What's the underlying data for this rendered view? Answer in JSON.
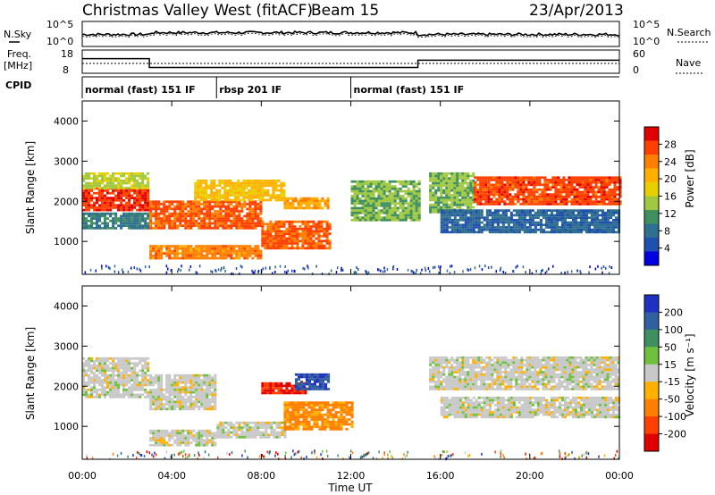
{
  "header": {
    "station": "Christmas Valley West (fitACF)",
    "beam": "Beam 15",
    "date": "23/Apr/2013"
  },
  "noise_panel": {
    "left_label": "N.Sky",
    "right_label": "N.Search",
    "ticks": [
      "10^5",
      "10^0"
    ]
  },
  "freq_panel": {
    "left_label_1": "Freq.",
    "left_label_2": "[MHz]",
    "left_ticks": [
      "18",
      "8"
    ],
    "right_label": "Nave",
    "right_ticks": [
      "60",
      "0"
    ]
  },
  "cpid": {
    "label": "CPID",
    "segments": [
      {
        "name": "normal (fast) 151 IF",
        "start_hour": 0,
        "end_hour": 6
      },
      {
        "name": "rbsp 201 IF",
        "start_hour": 6,
        "end_hour": 12
      },
      {
        "name": "normal (fast) 151 IF",
        "start_hour": 12,
        "end_hour": 24
      }
    ]
  },
  "power_panel": {
    "ylabel": "Slant Range [km]",
    "yticks": [
      "4000",
      "3000",
      "2000",
      "1000"
    ],
    "colorbar_label": "Power [dB]",
    "colorbar_ticks": [
      "28",
      "24",
      "20",
      "16",
      "12",
      "8",
      "4"
    ],
    "colors": [
      "#e00000",
      "#ff4000",
      "#ff7f00",
      "#ffb000",
      "#e8d000",
      "#a0c840",
      "#3f8f5f",
      "#2f6f8f",
      "#1f4faf",
      "#0000e0"
    ]
  },
  "velocity_panel": {
    "ylabel": "Slant Range [km]",
    "yticks": [
      "4000",
      "3000",
      "2000",
      "1000"
    ],
    "colorbar_label": "Velocity [m s⁻¹]",
    "colorbar_ticks": [
      "200",
      "100",
      "50",
      "15",
      "-15",
      "-50",
      "-100",
      "-200"
    ],
    "colors": [
      "#2030c0",
      "#3060a0",
      "#3f8f5f",
      "#70c040",
      "#c8c8c8",
      "#ffb000",
      "#ff7f00",
      "#ff4000",
      "#e00000"
    ]
  },
  "xaxis": {
    "label": "Time UT",
    "ticks": [
      "00:00",
      "04:00",
      "08:00",
      "12:00",
      "16:00",
      "20:00",
      "00:00"
    ]
  },
  "chart_data": {
    "type": "heatmap",
    "title": "Christmas Valley West (fitACF) Beam 15 23/Apr/2013",
    "xlabel": "Time UT",
    "ylabel": "Slant Range [km]",
    "xlim_hours": [
      0,
      24
    ],
    "ylim_km": [
      180,
      4500
    ],
    "frequency_mhz": [
      {
        "start_hour": 0,
        "end_hour": 3,
        "value": 16
      },
      {
        "start_hour": 3,
        "end_hour": 15,
        "value": 10.5
      },
      {
        "start_hour": 15,
        "end_hour": 24,
        "value": 15
      }
    ],
    "power_echo_bands": [
      {
        "t0": 0,
        "t1": 3,
        "r_lo": 1750,
        "r_hi": 2300,
        "db": 28
      },
      {
        "t0": 0,
        "t1": 3,
        "r_lo": 2300,
        "r_hi": 2700,
        "db": 16
      },
      {
        "t0": 0,
        "t1": 3,
        "r_lo": 1300,
        "r_hi": 1700,
        "db": 10
      },
      {
        "t0": 3,
        "t1": 8,
        "r_lo": 1300,
        "r_hi": 2000,
        "db": 26
      },
      {
        "t0": 3,
        "t1": 8,
        "r_lo": 550,
        "r_hi": 900,
        "db": 24
      },
      {
        "t0": 5,
        "t1": 9,
        "r_lo": 2000,
        "r_hi": 2500,
        "db": 20
      },
      {
        "t0": 8,
        "t1": 11,
        "r_lo": 800,
        "r_hi": 1500,
        "db": 26
      },
      {
        "t0": 9,
        "t1": 11,
        "r_lo": 1800,
        "r_hi": 2100,
        "db": 22
      },
      {
        "t0": 12,
        "t1": 15,
        "r_lo": 1500,
        "r_hi": 2500,
        "db": 14
      },
      {
        "t0": 15.5,
        "t1": 17.5,
        "r_lo": 1700,
        "r_hi": 2700,
        "db": 14
      },
      {
        "t0": 17.5,
        "t1": 24,
        "r_lo": 1900,
        "r_hi": 2600,
        "db": 27
      },
      {
        "t0": 16,
        "t1": 24,
        "r_lo": 1200,
        "r_hi": 1800,
        "db": 8
      }
    ],
    "velocity_echo_bands": [
      {
        "t0": 0,
        "t1": 3,
        "r_lo": 1700,
        "r_hi": 2700,
        "v": 0
      },
      {
        "t0": 3,
        "t1": 6,
        "r_lo": 1400,
        "r_hi": 2300,
        "v": 0
      },
      {
        "t0": 3,
        "t1": 6,
        "r_lo": 500,
        "r_hi": 900,
        "v": 0
      },
      {
        "t0": 6,
        "t1": 9,
        "r_lo": 700,
        "r_hi": 1100,
        "v": 0
      },
      {
        "t0": 8,
        "t1": 10,
        "r_lo": 1800,
        "r_hi": 2100,
        "v": -200
      },
      {
        "t0": 9.5,
        "t1": 11,
        "r_lo": 1900,
        "r_hi": 2300,
        "v": 200
      },
      {
        "t0": 9,
        "t1": 12,
        "r_lo": 900,
        "r_hi": 1600,
        "v": -60
      },
      {
        "t0": 15.5,
        "t1": 24,
        "r_lo": 1900,
        "r_hi": 2700,
        "v": 0
      },
      {
        "t0": 16,
        "t1": 24,
        "r_lo": 1200,
        "r_hi": 1700,
        "v": 0
      }
    ]
  }
}
